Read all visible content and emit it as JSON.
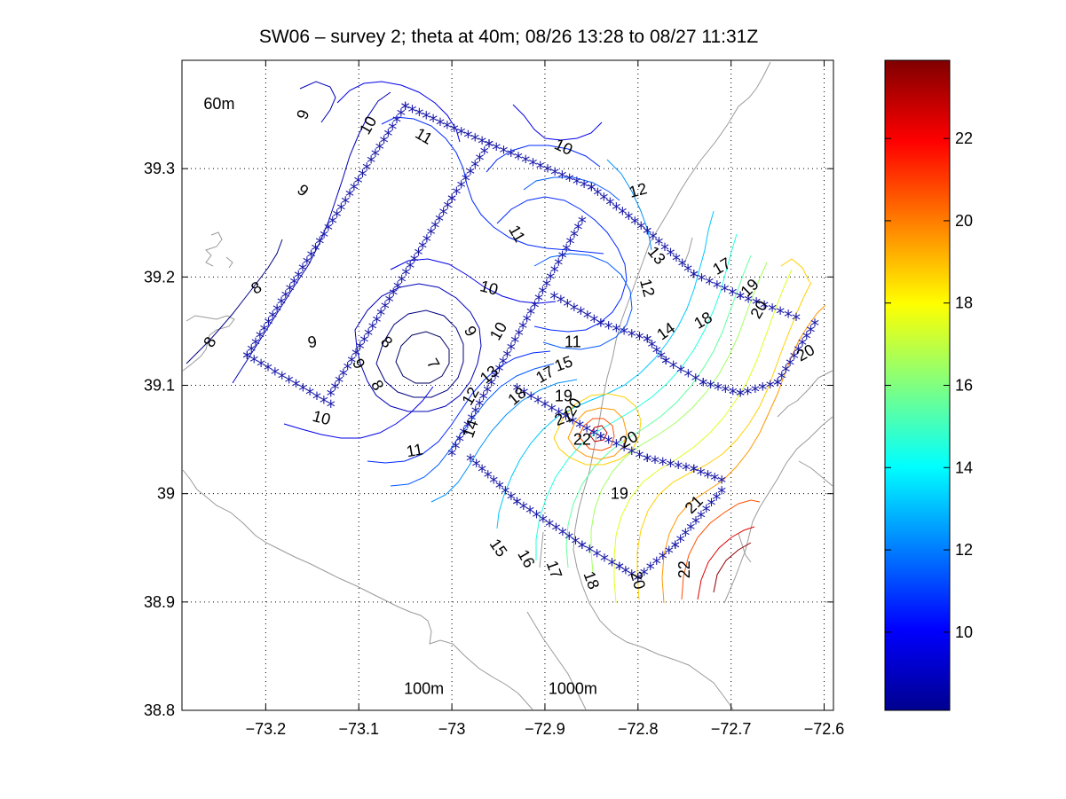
{
  "chart_data": {
    "type": "contour",
    "title": "SW06 – survey 2; theta at 40m; 08/26 13:28 to 08/27 11:31Z",
    "xlabel": "",
    "ylabel": "",
    "xlim": [
      -73.29,
      -72.59
    ],
    "ylim": [
      38.8,
      39.4
    ],
    "xticks": [
      -73.2,
      -73.1,
      -73.0,
      -72.9,
      -72.8,
      -72.7,
      -72.6
    ],
    "xtick_labels": [
      "−73.2",
      "−73.1",
      "−73",
      "−72.9",
      "−72.8",
      "−72.7",
      "−72.6"
    ],
    "yticks": [
      38.8,
      38.9,
      39.0,
      39.1,
      39.2,
      39.3
    ],
    "ytick_labels": [
      "38.8",
      "38.9",
      "39",
      "39.1",
      "39.2",
      "39.3"
    ],
    "grid": true,
    "colorbar": {
      "colormap": "jet",
      "range": [
        8.1,
        23.9
      ],
      "ticks": [
        10,
        12,
        14,
        16,
        18,
        20,
        22
      ],
      "tick_labels": [
        "10",
        "12",
        "14",
        "16",
        "18",
        "20",
        "22"
      ]
    },
    "annotations": [
      {
        "text": "60m",
        "x": -73.25,
        "y": 39.36
      },
      {
        "text": "100m",
        "x": -73.03,
        "y": 38.82
      },
      {
        "text": "1000m",
        "x": -72.87,
        "y": 38.82
      }
    ],
    "contour_labels": [
      {
        "text": "9",
        "x": -73.16,
        "y": 39.35,
        "level": 9,
        "angle": -70
      },
      {
        "text": "10",
        "x": -73.09,
        "y": 39.34,
        "level": 10,
        "angle": -60
      },
      {
        "text": "11",
        "x": -73.03,
        "y": 39.33,
        "level": 11,
        "angle": 30
      },
      {
        "text": "10",
        "x": -72.88,
        "y": 39.32,
        "level": 10,
        "angle": 25
      },
      {
        "text": "12",
        "x": -72.8,
        "y": 39.28,
        "level": 12,
        "angle": -15
      },
      {
        "text": "9",
        "x": -73.16,
        "y": 39.28,
        "level": 9,
        "angle": 40
      },
      {
        "text": "11",
        "x": -72.93,
        "y": 39.24,
        "level": 11,
        "angle": 60
      },
      {
        "text": "13",
        "x": -72.78,
        "y": 39.22,
        "level": 13,
        "angle": 50
      },
      {
        "text": "8",
        "x": -73.21,
        "y": 39.19,
        "level": 8,
        "angle": -30
      },
      {
        "text": "10",
        "x": -72.96,
        "y": 39.19,
        "level": 10,
        "angle": 15
      },
      {
        "text": "12",
        "x": -72.79,
        "y": 39.19,
        "level": 12,
        "angle": 75
      },
      {
        "text": "17",
        "x": -72.71,
        "y": 39.21,
        "level": 17,
        "angle": -30
      },
      {
        "text": "19",
        "x": -72.68,
        "y": 39.19,
        "level": 19,
        "angle": -45
      },
      {
        "text": "20",
        "x": -72.67,
        "y": 39.17,
        "level": 20,
        "angle": -60
      },
      {
        "text": "18",
        "x": -72.73,
        "y": 39.16,
        "level": 18,
        "angle": -30
      },
      {
        "text": "14",
        "x": -72.77,
        "y": 39.15,
        "level": 14,
        "angle": -35
      },
      {
        "text": "9",
        "x": -73.15,
        "y": 39.14,
        "level": 9,
        "angle": -10
      },
      {
        "text": "8",
        "x": -73.07,
        "y": 39.14,
        "level": 8,
        "angle": 45
      },
      {
        "text": "9",
        "x": -72.98,
        "y": 39.15,
        "level": 9,
        "angle": 60
      },
      {
        "text": "10",
        "x": -72.95,
        "y": 39.15,
        "level": 10,
        "angle": -60
      },
      {
        "text": "11",
        "x": -72.87,
        "y": 39.14,
        "level": 11,
        "angle": 0
      },
      {
        "text": "8",
        "x": -73.26,
        "y": 39.14,
        "level": 8,
        "angle": -60
      },
      {
        "text": "20",
        "x": -72.62,
        "y": 39.13,
        "level": 20,
        "angle": -30
      },
      {
        "text": "9",
        "x": -73.1,
        "y": 39.12,
        "level": 9,
        "angle": 60
      },
      {
        "text": "7",
        "x": -73.02,
        "y": 39.12,
        "level": 7,
        "angle": 60
      },
      {
        "text": "13",
        "x": -72.96,
        "y": 39.11,
        "level": 13,
        "angle": -40
      },
      {
        "text": "15",
        "x": -72.88,
        "y": 39.12,
        "level": 15,
        "angle": -20
      },
      {
        "text": "17",
        "x": -72.9,
        "y": 39.11,
        "level": 17,
        "angle": -30
      },
      {
        "text": "19",
        "x": -72.88,
        "y": 39.09,
        "level": 19,
        "angle": 0
      },
      {
        "text": "8",
        "x": -73.08,
        "y": 39.1,
        "level": 8,
        "angle": 60
      },
      {
        "text": "12",
        "x": -72.98,
        "y": 39.09,
        "level": 12,
        "angle": -60
      },
      {
        "text": "18",
        "x": -72.93,
        "y": 39.09,
        "level": 18,
        "angle": -40
      },
      {
        "text": "20",
        "x": -72.87,
        "y": 39.08,
        "level": 20,
        "angle": -60
      },
      {
        "text": "21",
        "x": -72.88,
        "y": 39.07,
        "level": 21,
        "angle": -20
      },
      {
        "text": "14",
        "x": -72.98,
        "y": 39.06,
        "level": 14,
        "angle": -70
      },
      {
        "text": "22",
        "x": -72.86,
        "y": 39.05,
        "level": 22,
        "angle": 0
      },
      {
        "text": "20",
        "x": -72.81,
        "y": 39.05,
        "level": 20,
        "angle": -30
      },
      {
        "text": "10",
        "x": -73.14,
        "y": 39.07,
        "level": 10,
        "angle": 15
      },
      {
        "text": "11",
        "x": -73.04,
        "y": 39.04,
        "level": 11,
        "angle": -10
      },
      {
        "text": "19",
        "x": -72.82,
        "y": 39.0,
        "level": 19,
        "angle": 0
      },
      {
        "text": "21",
        "x": -72.74,
        "y": 38.99,
        "level": 21,
        "angle": -45
      },
      {
        "text": "15",
        "x": -72.95,
        "y": 38.95,
        "level": 15,
        "angle": 55
      },
      {
        "text": "16",
        "x": -72.92,
        "y": 38.94,
        "level": 16,
        "angle": 60
      },
      {
        "text": "17",
        "x": -72.89,
        "y": 38.93,
        "level": 17,
        "angle": 70
      },
      {
        "text": "18",
        "x": -72.85,
        "y": 38.92,
        "level": 18,
        "angle": 70
      },
      {
        "text": "20",
        "x": -72.8,
        "y": 38.92,
        "level": 20,
        "angle": 75
      },
      {
        "text": "22",
        "x": -72.75,
        "y": 38.93,
        "level": 22,
        "angle": -90
      }
    ]
  }
}
